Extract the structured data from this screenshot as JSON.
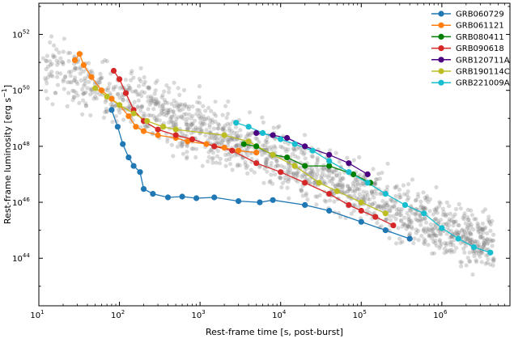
{
  "chart_data": {
    "type": "scatter",
    "xlabel": "Rest-frame time [s, post-burst]",
    "ylabel_base": "Rest-frame luminosity [erg s",
    "ylabel_exp": "−1",
    "ylabel_end": "]",
    "x_scale": "log",
    "y_scale": "log",
    "xlim": [
      10,
      7000000
    ],
    "ylim": [
      2e+42,
      1.3e+53
    ],
    "x_ticks": [
      {
        "v": 10,
        "base": "10",
        "exp": "1"
      },
      {
        "v": 100,
        "base": "10",
        "exp": "2"
      },
      {
        "v": 1000,
        "base": "10",
        "exp": "3"
      },
      {
        "v": 10000,
        "base": "10",
        "exp": "4"
      },
      {
        "v": 100000,
        "base": "10",
        "exp": "5"
      },
      {
        "v": 1000000,
        "base": "10",
        "exp": "6"
      }
    ],
    "y_ticks": [
      {
        "v": 1e+44,
        "base": "10",
        "exp": "44"
      },
      {
        "v": 1e+46,
        "base": "10",
        "exp": "46"
      },
      {
        "v": 1e+48,
        "base": "10",
        "exp": "48"
      },
      {
        "v": 1e+50,
        "base": "10",
        "exp": "50"
      },
      {
        "v": 1e+52,
        "base": "10",
        "exp": "52"
      }
    ],
    "legend_position": "top-right",
    "background_population_color": "#808080",
    "series": [
      {
        "name": "GRB060729",
        "color": "#1f77b4",
        "points": [
          [
            80,
            2e+49
          ],
          [
            95,
            5e+48
          ],
          [
            110,
            1.2e+48
          ],
          [
            130,
            4e+47
          ],
          [
            150,
            2e+47
          ],
          [
            180,
            1.2e+47
          ],
          [
            200,
            3e+46
          ],
          [
            260,
            2e+46
          ],
          [
            400,
            1.5e+46
          ],
          [
            600,
            1.6e+46
          ],
          [
            900,
            1.4e+46
          ],
          [
            1500,
            1.5e+46
          ],
          [
            3000,
            1.1e+46
          ],
          [
            5500,
            1e+46
          ],
          [
            8000,
            1.2e+46
          ],
          [
            20000,
            8e+45
          ],
          [
            40000,
            5e+45
          ],
          [
            100000,
            2e+45
          ],
          [
            200000,
            1e+45
          ],
          [
            400000,
            5e+44
          ]
        ]
      },
      {
        "name": "GRB061121",
        "color": "#ff7f0e",
        "points": [
          [
            28,
            1.2e+51
          ],
          [
            32,
            2e+51
          ],
          [
            36,
            8e+50
          ],
          [
            45,
            3e+50
          ],
          [
            60,
            1e+50
          ],
          [
            80,
            5e+49
          ],
          [
            100,
            3e+49
          ],
          [
            130,
            1.2e+49
          ],
          [
            160,
            5e+48
          ],
          [
            200,
            3.5e+48
          ],
          [
            300,
            2.5e+48
          ],
          [
            500,
            2e+48
          ],
          [
            700,
            1.5e+48
          ],
          [
            1200,
            1.2e+48
          ],
          [
            2000,
            9e+47
          ],
          [
            3000,
            7e+47
          ],
          [
            5000,
            6e+47
          ]
        ]
      },
      {
        "name": "GRB080411",
        "color": "#008000",
        "points": [
          [
            3500,
            1.2e+48
          ],
          [
            5000,
            1e+48
          ],
          [
            8000,
            5e+47
          ],
          [
            12000,
            4e+47
          ],
          [
            20000,
            2e+47
          ],
          [
            40000,
            2e+47
          ],
          [
            80000,
            1e+47
          ],
          [
            130000,
            5e+46
          ]
        ]
      },
      {
        "name": "GRB090618",
        "color": "#d62728",
        "points": [
          [
            85,
            5e+50
          ],
          [
            100,
            2.5e+50
          ],
          [
            120,
            8e+49
          ],
          [
            150,
            2e+49
          ],
          [
            200,
            8e+48
          ],
          [
            300,
            4e+48
          ],
          [
            500,
            2.5e+48
          ],
          [
            800,
            1.8e+48
          ],
          [
            1500,
            1e+48
          ],
          [
            2500,
            7e+47
          ],
          [
            5000,
            2.5e+47
          ],
          [
            10000,
            1.2e+47
          ],
          [
            20000,
            5e+46
          ],
          [
            40000,
            2e+46
          ],
          [
            70000,
            8e+45
          ],
          [
            100000,
            5e+45
          ],
          [
            150000,
            3e+45
          ],
          [
            250000,
            1.5e+45
          ]
        ]
      },
      {
        "name": "GRB120711A",
        "color": "#4b0082",
        "points": [
          [
            5000,
            3e+48
          ],
          [
            8000,
            2.5e+48
          ],
          [
            12000,
            2e+48
          ],
          [
            20000,
            1e+48
          ],
          [
            40000,
            5e+47
          ],
          [
            70000,
            2.5e+47
          ],
          [
            120000,
            1e+47
          ]
        ]
      },
      {
        "name": "GRB190114C",
        "color": "#bcbd22",
        "points": [
          [
            50,
            1.2e+50
          ],
          [
            70,
            6e+49
          ],
          [
            100,
            3e+49
          ],
          [
            150,
            1.5e+49
          ],
          [
            220,
            8e+48
          ],
          [
            350,
            5e+48
          ],
          [
            500,
            4e+48
          ],
          [
            2000,
            2.5e+48
          ],
          [
            4000,
            1.5e+48
          ],
          [
            8000,
            5e+47
          ],
          [
            15000,
            2e+47
          ],
          [
            30000,
            5e+46
          ],
          [
            50000,
            2.5e+46
          ],
          [
            100000,
            1e+46
          ],
          [
            200000,
            4e+45
          ]
        ]
      },
      {
        "name": "GRB221009A",
        "color": "#17becf",
        "points": [
          [
            2800,
            7e+48
          ],
          [
            4000,
            5e+48
          ],
          [
            6000,
            3e+48
          ],
          [
            10000,
            1.8e+48
          ],
          [
            15000,
            1.2e+48
          ],
          [
            25000,
            7e+47
          ],
          [
            40000,
            3e+47
          ],
          [
            70000,
            1.2e+47
          ],
          [
            120000,
            5e+46
          ],
          [
            200000,
            2e+46
          ],
          [
            350000,
            8e+45
          ],
          [
            600000,
            4e+45
          ],
          [
            1000000,
            1.2e+45
          ],
          [
            1600000,
            5e+44
          ],
          [
            2500000,
            2.5e+44
          ],
          [
            4000000,
            1.6e+44
          ]
        ]
      }
    ]
  }
}
